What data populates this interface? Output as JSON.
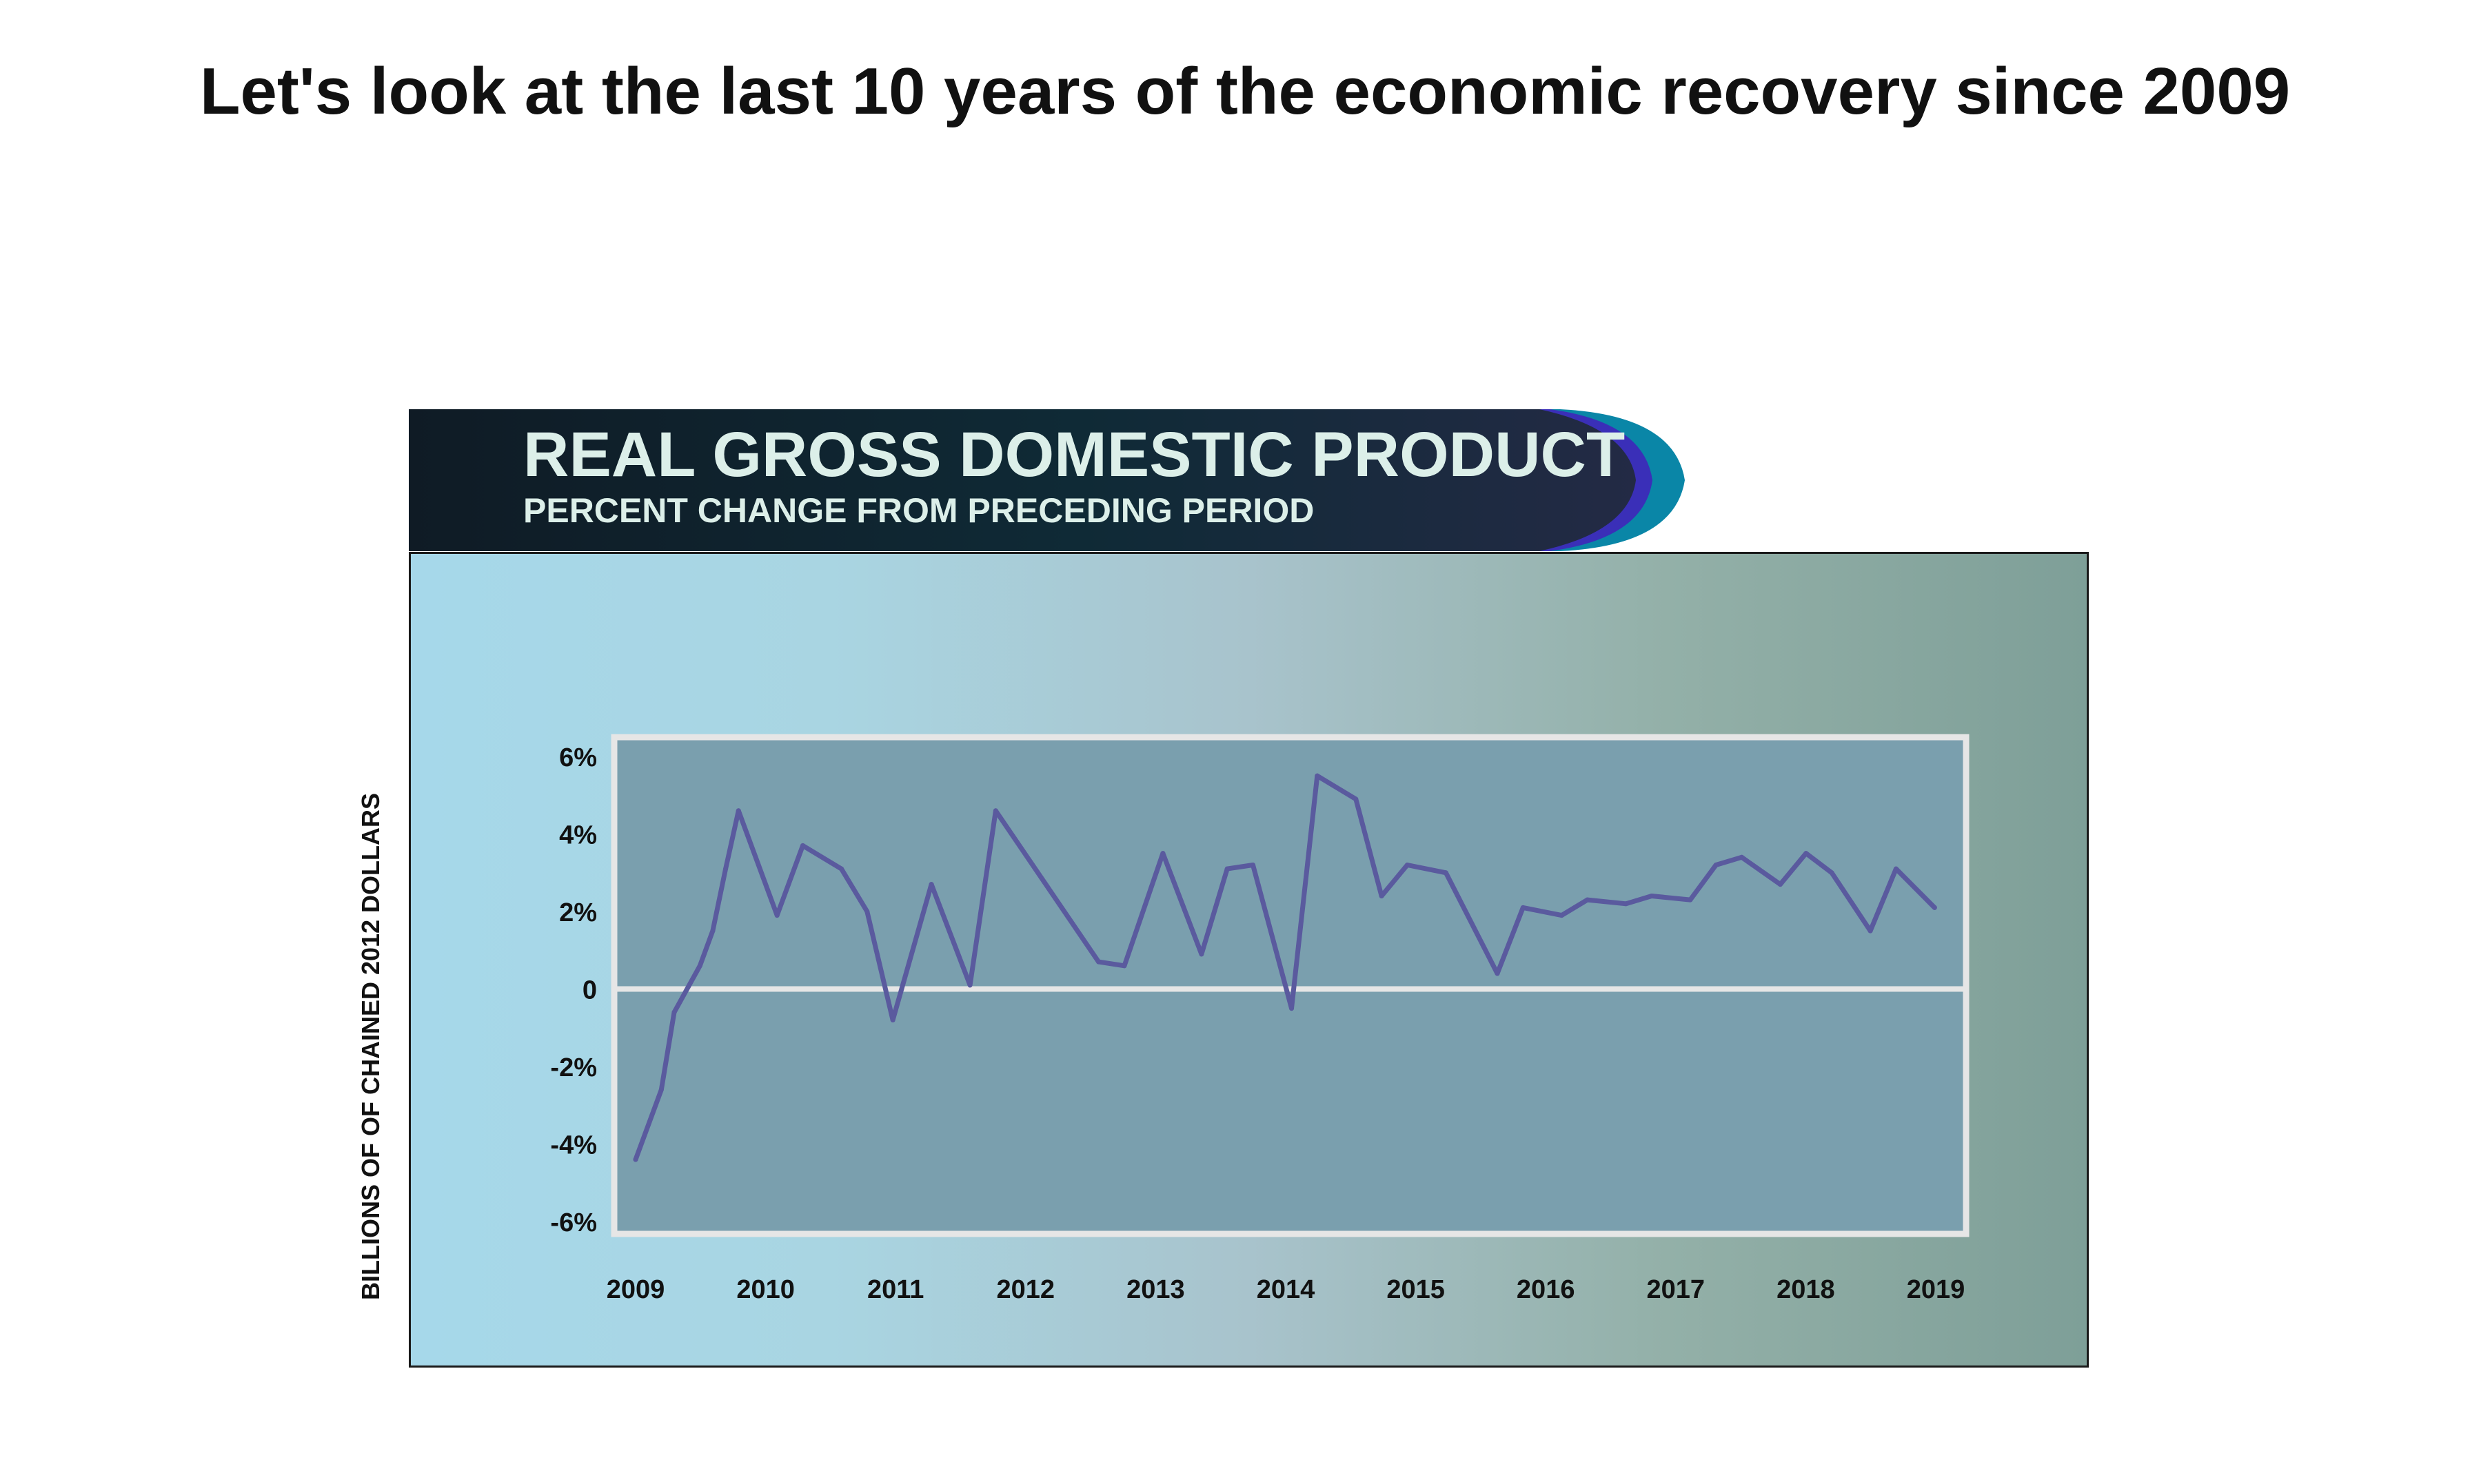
{
  "headline": "Let's look at the last 10 years of the economic recovery since 2009",
  "colors": {
    "banner_dark": "#111d27",
    "banner_accent_blue": "#3a2fb8",
    "banner_accent_teal": "#0a86a7",
    "plot_background": "#7a9fae",
    "line": "#5a5a9e",
    "frame": "#e6e6e6"
  },
  "chart_data": {
    "type": "line",
    "title": "REAL GROSS DOMESTIC PRODUCT",
    "subtitle": "PERCENT CHANGE FROM PRECEDING PERIOD",
    "xlabel": "",
    "ylabel": "BILLIONS OF OF CHAINED 2012 DOLLARS",
    "ylim": [
      -6.5,
      6.5
    ],
    "xlim": [
      2009,
      2019.2
    ],
    "y_ticks": [
      {
        "value": 6,
        "label": "6%"
      },
      {
        "value": 4,
        "label": "4%"
      },
      {
        "value": 2,
        "label": "2%"
      },
      {
        "value": 0,
        "label": "0"
      },
      {
        "value": -2,
        "label": "-2%"
      },
      {
        "value": -4,
        "label": "-4%"
      },
      {
        "value": -6,
        "label": "-6%"
      }
    ],
    "x_ticks": [
      "2009",
      "2010",
      "2011",
      "2012",
      "2013",
      "2014",
      "2015",
      "2016",
      "2017",
      "2018",
      "2019"
    ],
    "grid": false,
    "series": [
      {
        "points": [
          [
            2009.0,
            -4.4
          ],
          [
            2009.2,
            -2.6
          ],
          [
            2009.3,
            -0.6
          ],
          [
            2009.5,
            0.6
          ],
          [
            2009.6,
            1.5
          ],
          [
            2009.7,
            3.1
          ],
          [
            2009.8,
            4.6
          ],
          [
            2010.1,
            1.9
          ],
          [
            2010.3,
            3.7
          ],
          [
            2010.6,
            3.1
          ],
          [
            2010.8,
            2.0
          ],
          [
            2011.0,
            -0.8
          ],
          [
            2011.3,
            2.7
          ],
          [
            2011.6,
            0.1
          ],
          [
            2011.8,
            4.6
          ],
          [
            2012.6,
            0.7
          ],
          [
            2012.8,
            0.6
          ],
          [
            2013.1,
            3.5
          ],
          [
            2013.4,
            0.9
          ],
          [
            2013.6,
            3.1
          ],
          [
            2013.8,
            3.2
          ],
          [
            2014.1,
            -0.5
          ],
          [
            2014.3,
            5.5
          ],
          [
            2014.6,
            4.9
          ],
          [
            2014.8,
            2.4
          ],
          [
            2015.0,
            3.2
          ],
          [
            2015.3,
            3.0
          ],
          [
            2015.7,
            0.4
          ],
          [
            2015.9,
            2.1
          ],
          [
            2016.2,
            1.9
          ],
          [
            2016.4,
            2.3
          ],
          [
            2016.7,
            2.2
          ],
          [
            2016.9,
            2.4
          ],
          [
            2017.2,
            2.3
          ],
          [
            2017.4,
            3.2
          ],
          [
            2017.6,
            3.4
          ],
          [
            2017.9,
            2.7
          ],
          [
            2018.1,
            3.5
          ],
          [
            2018.3,
            3.0
          ],
          [
            2018.6,
            1.5
          ],
          [
            2018.8,
            3.1
          ],
          [
            2019.1,
            2.1
          ]
        ]
      }
    ]
  }
}
